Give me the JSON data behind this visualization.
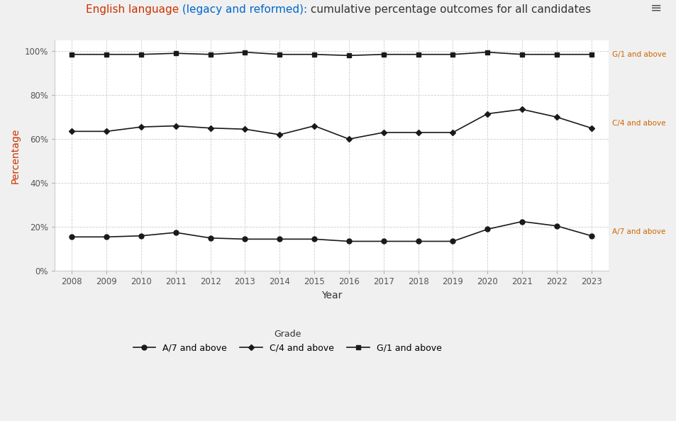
{
  "title_part1": "English language",
  "title_part2": " (legacy and reformed):",
  "title_part3": " cumulative percentage outcomes for all candidates",
  "title_color1": "#cc3300",
  "title_color2": "#0066cc",
  "title_color3": "#333333",
  "xlabel": "Year",
  "ylabel": "Percentage",
  "ylabel_color": "#cc3300",
  "years": [
    2008,
    2009,
    2010,
    2011,
    2012,
    2013,
    2014,
    2015,
    2016,
    2017,
    2018,
    2019,
    2020,
    2021,
    2022,
    2023
  ],
  "A7_and_above": [
    15.5,
    15.5,
    16.0,
    17.5,
    15.0,
    14.5,
    14.5,
    14.5,
    13.5,
    13.5,
    13.5,
    13.5,
    19.0,
    22.5,
    20.5,
    16.0
  ],
  "C4_and_above": [
    63.5,
    63.5,
    65.5,
    66.0,
    65.0,
    64.5,
    62.0,
    66.0,
    60.0,
    63.0,
    63.0,
    63.0,
    71.5,
    73.5,
    70.0,
    65.0
  ],
  "G1_and_above": [
    98.5,
    98.5,
    98.5,
    99.0,
    98.5,
    99.5,
    98.5,
    98.5,
    98.0,
    98.5,
    98.5,
    98.5,
    99.5,
    98.5,
    98.5,
    98.5
  ],
  "line_color": "#1a1a1a",
  "marker_size": 5,
  "background_color": "#f0f0f0",
  "plot_bg_color": "#ffffff",
  "grid_color": "#cccccc",
  "legend_title": "Grade",
  "legend_labels": [
    "A/7 and above",
    "C/4 and above",
    "G/1 and above"
  ],
  "annotation_color": "#cc6600",
  "ylim": [
    0,
    105
  ],
  "yticks": [
    0,
    20,
    40,
    60,
    80,
    100
  ],
  "ytick_labels": [
    "0%",
    "20%",
    "40%",
    "60%",
    "80%",
    "100%"
  ],
  "menu_icon": "≡",
  "annot_G1": "G/1 and above",
  "annot_C4": "C/4 and above",
  "annot_A7": "A/7 and above"
}
